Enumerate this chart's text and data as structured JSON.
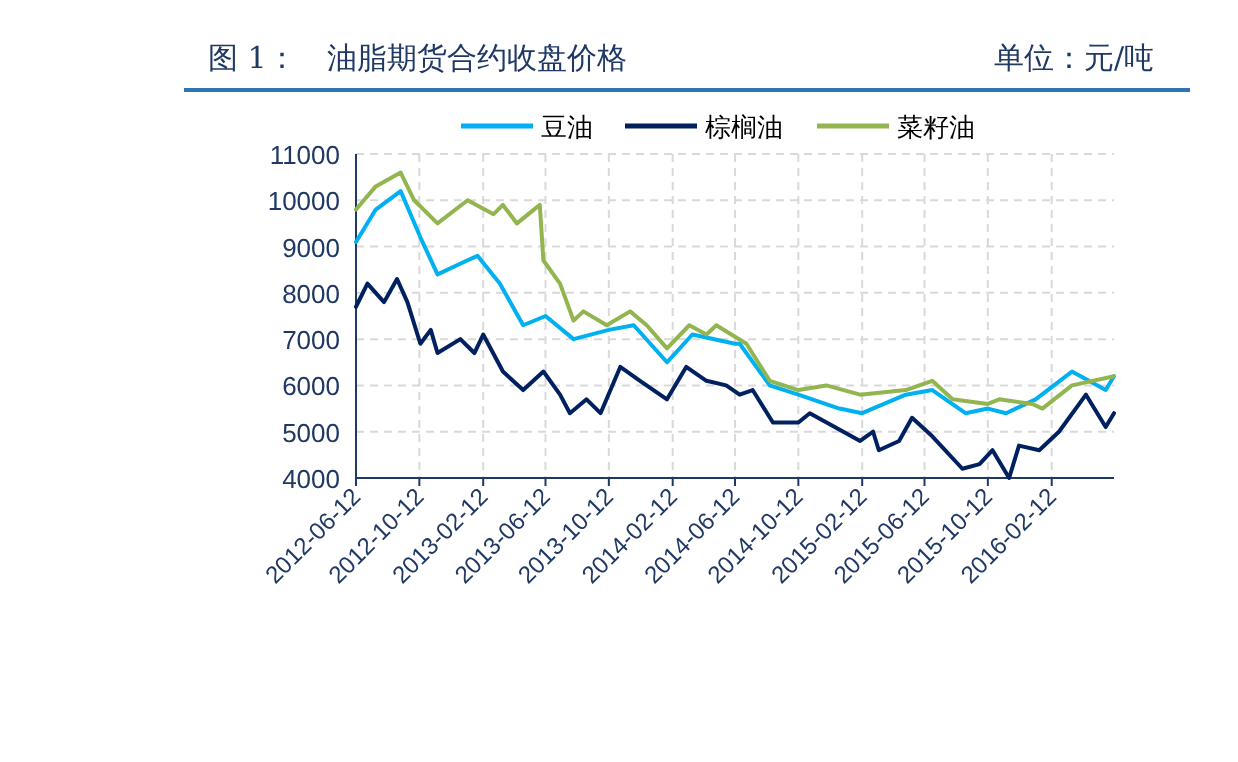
{
  "chart_data": {
    "type": "line",
    "title": "图 1：　油脂期货合约收盘价格",
    "subtitle": "单位：元/吨",
    "xlim": [
      "2012-06-12",
      "2016-06-11"
    ],
    "xticks": [
      "2012-06-12",
      "2012-10-12",
      "2013-02-12",
      "2013-06-12",
      "2013-10-12",
      "2014-02-12",
      "2014-06-12",
      "2014-10-12",
      "2015-02-12",
      "2015-06-12",
      "2015-10-12",
      "2016-02-12"
    ],
    "ylim": [
      4000,
      11000
    ],
    "yticks": [
      4000,
      5000,
      6000,
      7000,
      8000,
      9000,
      10000,
      11000
    ],
    "grid": true,
    "legend": "top",
    "line_style": "solid",
    "marker": "none",
    "series": [
      {
        "name": "豆油",
        "color": "#00b0f0",
        "x": [
          "2012-06-12",
          "2012-07-20",
          "2012-09-06",
          "2012-10-14",
          "2012-11-16",
          "2013-01-12",
          "2013-02-01",
          "2013-03-16",
          "2013-04-30",
          "2013-06-12",
          "2013-08-05",
          "2013-10-12",
          "2013-11-29",
          "2014-02-01",
          "2014-03-22",
          "2014-06-12",
          "2014-06-21",
          "2014-08-18",
          "2014-10-12",
          "2014-12-30",
          "2015-02-12",
          "2015-05-07",
          "2015-06-27",
          "2015-08-30",
          "2015-10-12",
          "2015-11-16",
          "2016-01-12",
          "2016-03-22",
          "2016-05-26",
          "2016-06-11"
        ],
        "values": [
          9100,
          9800,
          10200,
          9200,
          8400,
          8700,
          8800,
          8200,
          7300,
          7500,
          7000,
          7200,
          7300,
          6500,
          7100,
          6900,
          6900,
          6000,
          5800,
          5500,
          5400,
          5800,
          5900,
          5400,
          5500,
          5400,
          5700,
          6300,
          5900,
          6200
        ]
      },
      {
        "name": "棕榈油",
        "color": "#002060",
        "x": [
          "2012-06-12",
          "2012-07-04",
          "2012-08-05",
          "2012-08-30",
          "2012-09-19",
          "2012-10-14",
          "2012-11-03",
          "2012-11-16",
          "2012-12-30",
          "2013-01-26",
          "2013-02-12",
          "2013-03-22",
          "2013-04-30",
          "2013-06-08",
          "2013-07-10",
          "2013-07-29",
          "2013-08-30",
          "2013-09-26",
          "2013-11-03",
          "2013-12-11",
          "2014-02-01",
          "2014-03-10",
          "2014-04-18",
          "2014-05-26",
          "2014-06-21",
          "2014-07-16",
          "2014-08-24",
          "2014-10-12",
          "2014-11-03",
          "2015-02-08",
          "2015-03-05",
          "2015-03-16",
          "2015-04-24",
          "2015-05-19",
          "2015-06-27",
          "2015-08-24",
          "2015-09-26",
          "2015-10-21",
          "2015-11-22",
          "2015-12-11",
          "2016-01-19",
          "2016-02-26",
          "2016-04-18",
          "2016-05-26",
          "2016-06-11"
        ],
        "values": [
          7700,
          8200,
          7800,
          8300,
          7800,
          6900,
          7200,
          6700,
          7000,
          6700,
          7100,
          6300,
          5900,
          6300,
          5800,
          5400,
          5700,
          5400,
          6400,
          6100,
          5700,
          6400,
          6100,
          6000,
          5800,
          5900,
          5200,
          5200,
          5400,
          4800,
          5000,
          4600,
          4800,
          5300,
          4900,
          4200,
          4300,
          4600,
          4000,
          4700,
          4600,
          5000,
          5800,
          5100,
          5400
        ]
      },
      {
        "name": "菜籽油",
        "color": "#92b550",
        "x": [
          "2012-06-12",
          "2012-07-20",
          "2012-09-06",
          "2012-10-02",
          "2012-11-16",
          "2013-01-13",
          "2013-03-04",
          "2013-03-22",
          "2013-04-18",
          "2013-06-01",
          "2013-06-08",
          "2013-07-10",
          "2013-08-05",
          "2013-08-24",
          "2013-10-08",
          "2013-11-22",
          "2013-12-24",
          "2014-02-01",
          "2014-03-16",
          "2014-04-18",
          "2014-05-07",
          "2014-07-04",
          "2014-08-18",
          "2014-10-12",
          "2014-12-05",
          "2015-02-08",
          "2015-05-07",
          "2015-06-27",
          "2015-08-05",
          "2015-10-12",
          "2015-11-03",
          "2016-01-06",
          "2016-01-25",
          "2016-03-22",
          "2016-06-11"
        ],
        "values": [
          9800,
          10300,
          10600,
          10000,
          9500,
          10000,
          9700,
          9900,
          9500,
          9900,
          8700,
          8200,
          7400,
          7600,
          7300,
          7600,
          7300,
          6800,
          7300,
          7100,
          7300,
          6900,
          6100,
          5900,
          6000,
          5800,
          5900,
          6100,
          5700,
          5600,
          5700,
          5600,
          5500,
          6000,
          6200
        ]
      }
    ]
  }
}
